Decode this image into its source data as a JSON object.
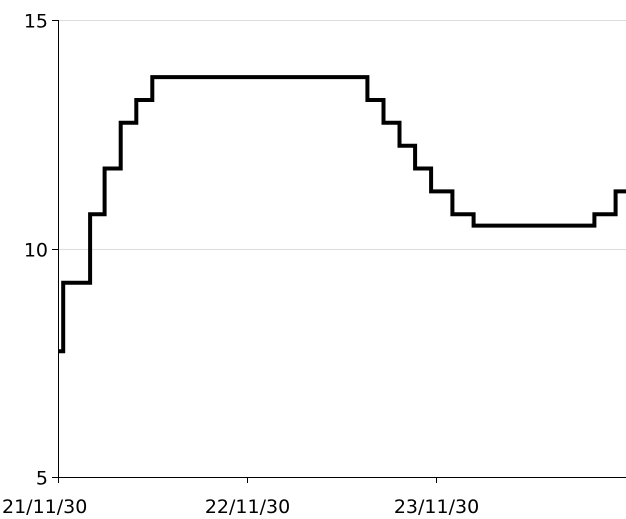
{
  "chart_data": {
    "type": "line",
    "step": true,
    "title": "",
    "xlabel": "",
    "ylabel": "",
    "ylim": [
      5,
      15
    ],
    "xlim": [
      "2021-11-30",
      "2024-11-30"
    ],
    "y_ticks": [
      {
        "value": 5,
        "label": "5"
      },
      {
        "value": 10,
        "label": "10"
      },
      {
        "value": 15,
        "label": "15"
      }
    ],
    "x_ticks": [
      {
        "value": "2021-11-30",
        "label": "21/11/30"
      },
      {
        "value": "2022-11-30",
        "label": "22/11/30"
      },
      {
        "value": "2023-11-30",
        "label": "23/11/30"
      }
    ],
    "grid": "horizontal",
    "series": [
      {
        "color": "#000000",
        "x": [
          "2021-11-30",
          "2021-12-10",
          "2022-01-31",
          "2022-02-28",
          "2022-03-31",
          "2022-04-30",
          "2022-05-31",
          "2022-06-30",
          "2023-07-20",
          "2023-08-20",
          "2023-09-20",
          "2023-10-20",
          "2023-11-20",
          "2023-12-31",
          "2024-02-10",
          "2024-03-20",
          "2024-09-30",
          "2024-11-10",
          "2024-11-30"
        ],
        "values": [
          7.75,
          9.25,
          10.75,
          11.75,
          12.75,
          13.25,
          13.75,
          13.75,
          13.25,
          12.75,
          12.25,
          11.75,
          11.25,
          10.75,
          10.5,
          10.5,
          10.75,
          11.25,
          11.25
        ]
      }
    ]
  }
}
